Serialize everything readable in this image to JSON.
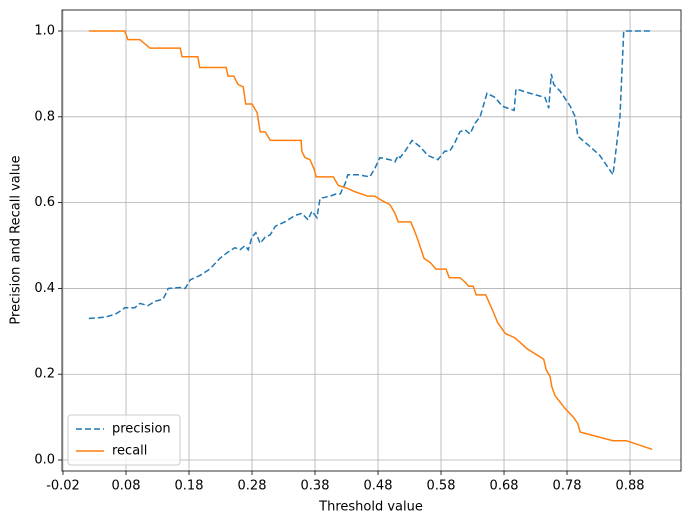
{
  "chart_data": {
    "type": "line",
    "xlabel": "Threshold value",
    "ylabel": "Precision and Recall value",
    "xlim": [
      -0.0216,
      0.9609
    ],
    "ylim": [
      -0.0256,
      1.049
    ],
    "xticks": [
      -0.02,
      0.08,
      0.18,
      0.28,
      0.38,
      0.48,
      0.58,
      0.68,
      0.78,
      0.88
    ],
    "yticks": [
      {
        "value": 0,
        "label": "0.0"
      },
      0.2,
      0.4,
      0.6,
      0.8,
      {
        "value": 1,
        "label": "1.0"
      }
    ],
    "grid": true,
    "legend": "lower left",
    "series": [
      {
        "name": "precision",
        "color": "#1f77b4",
        "dash": "dashed",
        "x": [
          0.021,
          0.047,
          0.063,
          0.074,
          0.078,
          0.094,
          0.102,
          0.115,
          0.126,
          0.139,
          0.147,
          0.166,
          0.174,
          0.182,
          0.197,
          0.213,
          0.229,
          0.242,
          0.253,
          0.261,
          0.269,
          0.274,
          0.28,
          0.286,
          0.293,
          0.301,
          0.309,
          0.317,
          0.332,
          0.348,
          0.359,
          0.369,
          0.375,
          0.383,
          0.388,
          0.404,
          0.413,
          0.42,
          0.428,
          0.432,
          0.448,
          0.467,
          0.475,
          0.483,
          0.499,
          0.507,
          0.512,
          0.515,
          0.523,
          0.534,
          0.547,
          0.559,
          0.575,
          0.586,
          0.594,
          0.602,
          0.61,
          0.618,
          0.626,
          0.634,
          0.642,
          0.653,
          0.666,
          0.677,
          0.686,
          0.696,
          0.699,
          0.721,
          0.745,
          0.751,
          0.755,
          0.759,
          0.769,
          0.785,
          0.793,
          0.797,
          0.817,
          0.832,
          0.853,
          0.864,
          0.87,
          0.915
        ],
        "values": [
          0.33,
          0.333,
          0.34,
          0.35,
          0.355,
          0.355,
          0.365,
          0.36,
          0.37,
          0.375,
          0.4,
          0.402,
          0.4,
          0.42,
          0.43,
          0.445,
          0.47,
          0.485,
          0.495,
          0.49,
          0.5,
          0.49,
          0.52,
          0.53,
          0.505,
          0.52,
          0.525,
          0.545,
          0.555,
          0.57,
          0.575,
          0.56,
          0.58,
          0.565,
          0.61,
          0.615,
          0.62,
          0.62,
          0.645,
          0.665,
          0.665,
          0.66,
          0.68,
          0.705,
          0.7,
          0.695,
          0.71,
          0.705,
          0.72,
          0.745,
          0.73,
          0.71,
          0.7,
          0.72,
          0.72,
          0.74,
          0.765,
          0.77,
          0.76,
          0.785,
          0.8,
          0.855,
          0.845,
          0.825,
          0.82,
          0.815,
          0.865,
          0.855,
          0.845,
          0.82,
          0.9,
          0.875,
          0.86,
          0.825,
          0.8,
          0.755,
          0.73,
          0.71,
          0.665,
          0.8,
          1.0,
          1.0
        ]
      },
      {
        "name": "recall",
        "color": "#ff7f0e",
        "dash": "solid",
        "x": [
          0.021,
          0.078,
          0.083,
          0.102,
          0.118,
          0.166,
          0.169,
          0.194,
          0.197,
          0.239,
          0.242,
          0.251,
          0.258,
          0.266,
          0.27,
          0.28,
          0.288,
          0.293,
          0.301,
          0.309,
          0.358,
          0.359,
          0.364,
          0.372,
          0.378,
          0.382,
          0.409,
          0.417,
          0.428,
          0.444,
          0.464,
          0.475,
          0.486,
          0.499,
          0.507,
          0.512,
          0.532,
          0.539,
          0.544,
          0.553,
          0.563,
          0.572,
          0.588,
          0.593,
          0.61,
          0.618,
          0.624,
          0.631,
          0.636,
          0.651,
          0.663,
          0.67,
          0.682,
          0.697,
          0.705,
          0.716,
          0.743,
          0.747,
          0.753,
          0.756,
          0.761,
          0.777,
          0.79,
          0.797,
          0.801,
          0.853,
          0.874,
          0.915
        ],
        "values": [
          1.0,
          1.0,
          0.98,
          0.98,
          0.96,
          0.96,
          0.94,
          0.94,
          0.915,
          0.915,
          0.895,
          0.895,
          0.875,
          0.87,
          0.83,
          0.83,
          0.81,
          0.765,
          0.765,
          0.745,
          0.745,
          0.72,
          0.705,
          0.7,
          0.68,
          0.66,
          0.66,
          0.64,
          0.635,
          0.625,
          0.615,
          0.615,
          0.605,
          0.595,
          0.575,
          0.555,
          0.555,
          0.53,
          0.51,
          0.47,
          0.46,
          0.445,
          0.445,
          0.425,
          0.425,
          0.415,
          0.405,
          0.405,
          0.385,
          0.385,
          0.345,
          0.32,
          0.295,
          0.285,
          0.275,
          0.26,
          0.235,
          0.21,
          0.195,
          0.17,
          0.15,
          0.12,
          0.1,
          0.085,
          0.065,
          0.045,
          0.045,
          0.025
        ]
      }
    ]
  }
}
